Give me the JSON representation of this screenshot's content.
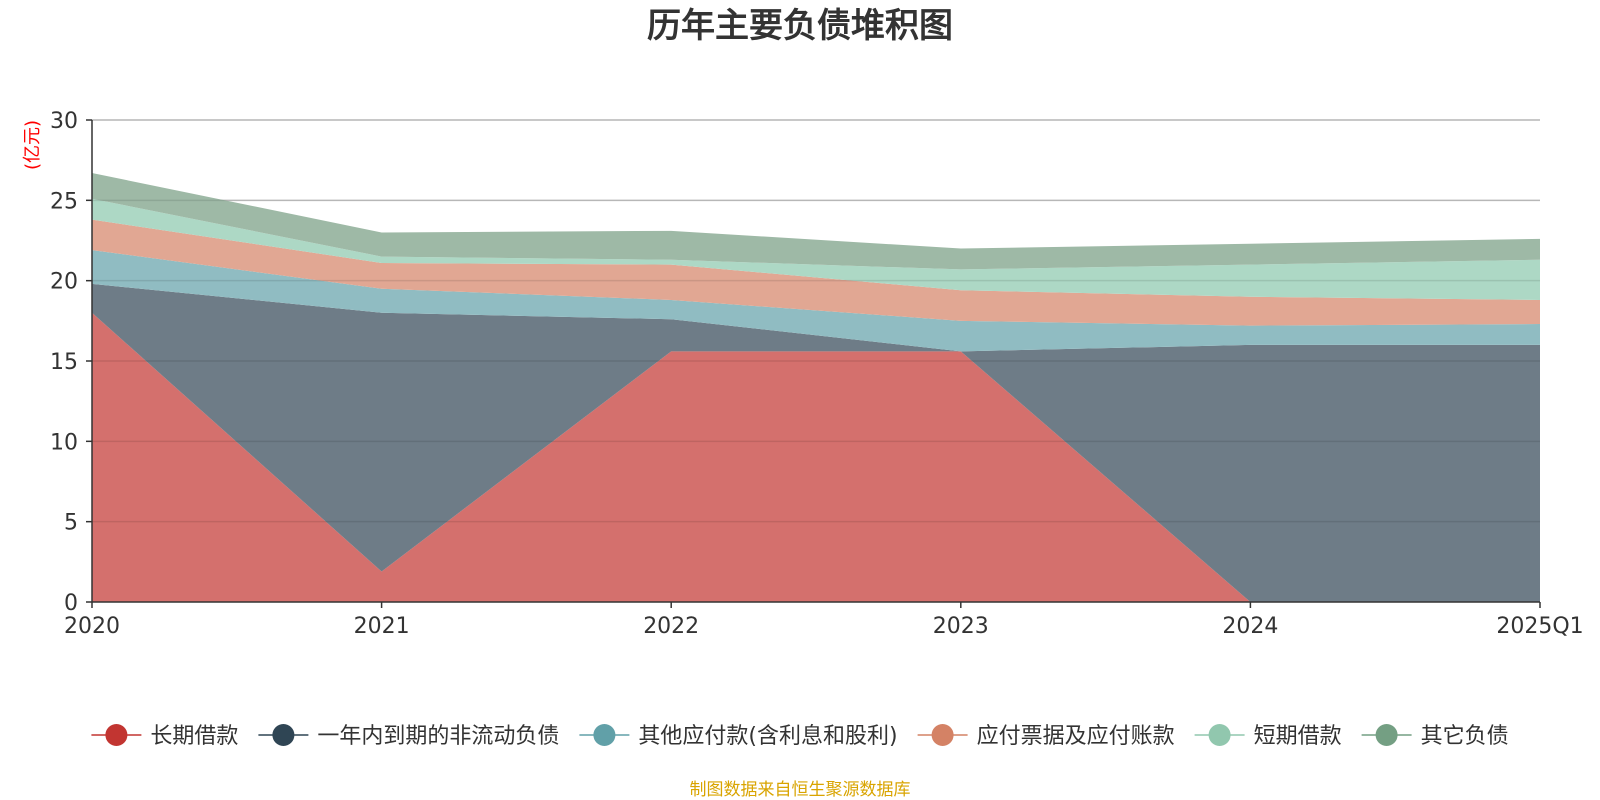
{
  "chart_data": {
    "type": "area",
    "stacked": true,
    "title": "历年主要负债堆积图",
    "ylabel": "(亿元)",
    "ylim": [
      0,
      30
    ],
    "yticks": [
      0,
      5,
      10,
      15,
      20,
      25,
      30
    ],
    "grid": true,
    "legend_position": "bottom",
    "categories": [
      "2020",
      "2021",
      "2022",
      "2023",
      "2024",
      "2025Q1"
    ],
    "series": [
      {
        "name": "长期借款",
        "color": "#c23531",
        "fill": "#d4706d",
        "values": [
          18.0,
          1.9,
          15.6,
          15.6,
          0.0,
          0.0
        ]
      },
      {
        "name": "一年内到期的非流动负债",
        "color": "#2f4554",
        "fill": "#6e7c87",
        "values": [
          1.8,
          16.1,
          2.0,
          0.0,
          16.0,
          16.0
        ]
      },
      {
        "name": "其他应付款(含利息和股利)",
        "color": "#61a0a8",
        "fill": "#90bcc2",
        "values": [
          2.1,
          1.5,
          1.2,
          1.9,
          1.2,
          1.3
        ]
      },
      {
        "name": "应付票据及应付账款",
        "color": "#d48265",
        "fill": "#e1a793",
        "values": [
          1.9,
          1.6,
          2.2,
          1.9,
          1.8,
          1.5
        ]
      },
      {
        "name": "短期借款",
        "color": "#91c7ae",
        "fill": "#add8c5",
        "values": [
          1.3,
          0.4,
          0.3,
          1.3,
          2.0,
          2.5
        ]
      },
      {
        "name": "其它负债",
        "color": "#749f83",
        "fill": "#9eb9a6",
        "values": [
          1.6,
          1.5,
          1.8,
          1.3,
          1.3,
          1.3
        ]
      }
    ]
  },
  "colors": {
    "axis": "#333333",
    "grid": "#cccccc",
    "unit_label": "#ff0000",
    "source_label": "#d9a400"
  },
  "source_note": "制图数据来自恒生聚源数据库"
}
